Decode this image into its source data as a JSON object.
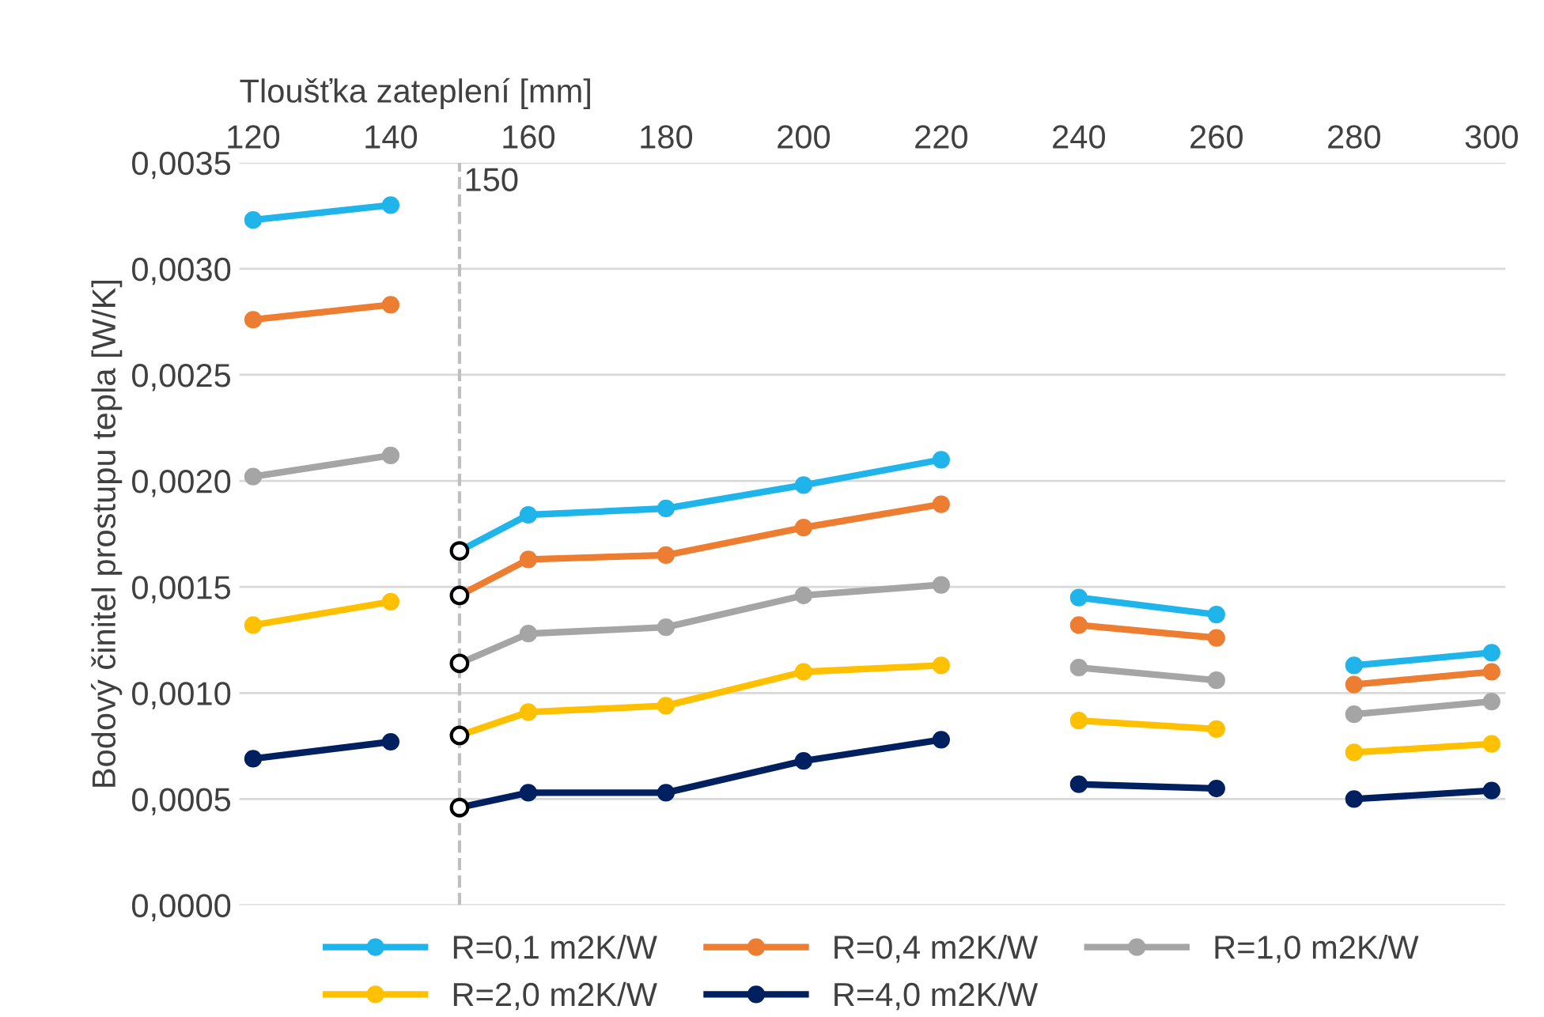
{
  "chart_data": {
    "type": "line",
    "xlabel": "Tloušťka zateplení [mm]",
    "ylabel": "Bodový činitel prostupu tepla [W/K]",
    "x": [
      120,
      140,
      null,
      150,
      160,
      180,
      200,
      220,
      null,
      240,
      260,
      null,
      280,
      300
    ],
    "xlim": [
      118,
      302
    ],
    "xticks": [
      120,
      140,
      160,
      180,
      200,
      220,
      240,
      260,
      280,
      300
    ],
    "ylim": [
      0,
      0.0035
    ],
    "yticks": [
      {
        "value": 0,
        "label": "0,0000"
      },
      {
        "value": 0.0005,
        "label": "0,0005"
      },
      {
        "value": 0.001,
        "label": "0,0010"
      },
      {
        "value": 0.0015,
        "label": "0,0015"
      },
      {
        "value": 0.002,
        "label": "0,0020"
      },
      {
        "value": 0.0025,
        "label": "0,0025"
      },
      {
        "value": 0.003,
        "label": "0,0030"
      },
      {
        "value": 0.0035,
        "label": "0,0035"
      }
    ],
    "grid": "y",
    "legend": "bottom",
    "marker": "circle",
    "line_style": "solid",
    "ref_lines": [
      {
        "axis": "x",
        "value": 150,
        "label": "150",
        "color": "#bfbfbf",
        "line_style": "dashed"
      }
    ],
    "series": [
      {
        "name": "R=0,1 m2K/W",
        "color": "#1fb4ea",
        "values": [
          0.00323,
          0.0033,
          null,
          0.00167,
          0.00184,
          0.00187,
          0.00198,
          0.0021,
          null,
          0.00145,
          0.00137,
          null,
          0.00113,
          0.00119
        ]
      },
      {
        "name": "R=0,4 m2K/W",
        "color": "#ed7d31",
        "values": [
          0.00276,
          0.00283,
          null,
          0.00146,
          0.00163,
          0.00165,
          0.00178,
          0.00189,
          null,
          0.00132,
          0.00126,
          null,
          0.00104,
          0.0011
        ]
      },
      {
        "name": "R=1,0 m2K/W",
        "color": "#a5a5a5",
        "values": [
          0.00202,
          0.00212,
          null,
          0.00114,
          0.00128,
          0.00131,
          0.00146,
          0.00151,
          null,
          0.00112,
          0.00106,
          null,
          0.0009,
          0.00096
        ]
      },
      {
        "name": "R=2,0 m2K/W",
        "color": "#ffc000",
        "values": [
          0.00132,
          0.00143,
          null,
          0.0008,
          0.00091,
          0.00094,
          0.0011,
          0.00113,
          null,
          0.00087,
          0.00083,
          null,
          0.00072,
          0.00076
        ]
      },
      {
        "name": "R=4,0 m2K/W",
        "color": "#002060",
        "values": [
          0.00069,
          0.00077,
          null,
          0.00046,
          0.00053,
          0.00053,
          0.00068,
          0.00078,
          null,
          0.00057,
          0.00055,
          null,
          0.0005,
          0.00054
        ]
      },
      {
        "type": "scatter",
        "color": "#000000",
        "values": [
          null,
          null,
          null,
          0.00167,
          null,
          null,
          null,
          null,
          null,
          null,
          null,
          null,
          null,
          null
        ]
      },
      {
        "type": "scatter",
        "color": "#000000",
        "values": [
          null,
          null,
          null,
          0.00146,
          null,
          null,
          null,
          null,
          null,
          null,
          null,
          null,
          null,
          null
        ]
      },
      {
        "type": "scatter",
        "color": "#000000",
        "values": [
          null,
          null,
          null,
          0.00114,
          null,
          null,
          null,
          null,
          null,
          null,
          null,
          null,
          null,
          null
        ]
      },
      {
        "type": "scatter",
        "color": "#000000",
        "values": [
          null,
          null,
          null,
          0.0008,
          null,
          null,
          null,
          null,
          null,
          null,
          null,
          null,
          null,
          null
        ]
      },
      {
        "type": "scatter",
        "color": "#000000",
        "values": [
          null,
          null,
          null,
          0.00046,
          null,
          null,
          null,
          null,
          null,
          null,
          null,
          null,
          null,
          null
        ]
      }
    ]
  }
}
